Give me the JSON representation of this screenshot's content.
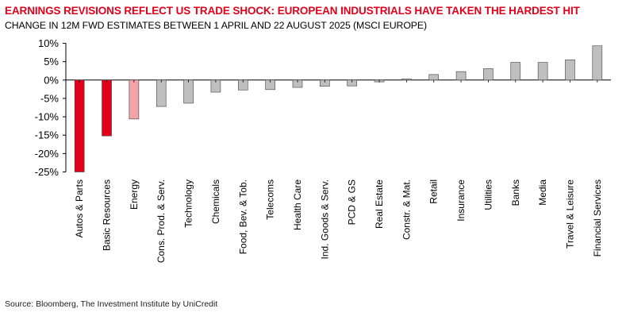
{
  "title": "EARNINGS REVISIONS REFLECT US TRADE SHOCK: EUROPEAN INDUSTRIALS HAVE TAKEN THE HARDEST HIT",
  "subtitle": "CHANGE IN 12M FWD ESTIMATES BETWEEN 1 APRIL AND 22 AUGUST 2025 (MSCI EUROPE)",
  "source": "Source: Bloomberg, The Investment Institute by UniCredit",
  "colors": {
    "title": "#e2001a",
    "highlight": "#e2001a",
    "highlight_light": "#f4a3a8",
    "default_bar": "#bfbfbf",
    "bar_outline": "#404040"
  },
  "chart_data": {
    "type": "bar",
    "title": "EARNINGS REVISIONS REFLECT US TRADE SHOCK: EUROPEAN INDUSTRIALS HAVE TAKEN THE HARDEST HIT",
    "subtitle": "CHANGE IN 12M FWD ESTIMATES BETWEEN 1 APRIL AND 22 AUGUST 2025 (MSCI EUROPE)",
    "xlabel": "",
    "ylabel": "",
    "ylim": [
      -25,
      10
    ],
    "yticks": [
      10,
      5,
      0,
      -5,
      -10,
      -15,
      -20,
      -25
    ],
    "ytick_labels": [
      "10%",
      "5%",
      "0%",
      "-5%",
      "-10%",
      "-15%",
      "-20%",
      "-25%"
    ],
    "grid": false,
    "legend": "none",
    "categories": [
      "Autos & Parts",
      "Basic Resources",
      "Energy",
      "Cons. Prod. & Serv.",
      "Technology",
      "Chemicals",
      "Food, Bev. & Tob.",
      "Telecoms",
      "Health Care",
      "Ind. Goods & Serv.",
      "PCD & GS",
      "Real Estate",
      "Constr. & Mat.",
      "Retail",
      "Insurance",
      "Utilities",
      "Banks",
      "Media",
      "Travel & Leisure",
      "Financial Services"
    ],
    "values": [
      -25.0,
      -15.2,
      -10.6,
      -7.2,
      -6.3,
      -3.3,
      -2.7,
      -2.6,
      -2.0,
      -1.7,
      -1.6,
      -0.5,
      0.3,
      1.5,
      2.3,
      3.1,
      4.8,
      4.8,
      5.5,
      9.3
    ],
    "bar_colors": [
      "highlight",
      "highlight",
      "highlight_light",
      "default",
      "default",
      "default",
      "default",
      "default",
      "default",
      "default",
      "default",
      "default",
      "default",
      "default",
      "default",
      "default",
      "default",
      "default",
      "default",
      "default"
    ]
  }
}
